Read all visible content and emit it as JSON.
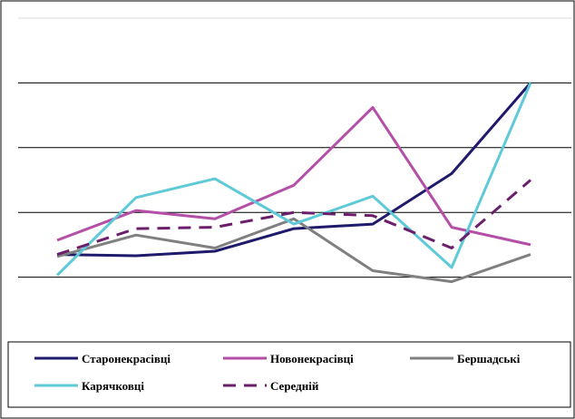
{
  "chart_data": {
    "type": "line",
    "title": "",
    "xlabel": "",
    "ylabel": "",
    "x": [
      1,
      2,
      3,
      4,
      5,
      6,
      7
    ],
    "ylim": [
      0,
      5
    ],
    "y_gridlines": [
      1,
      2,
      3,
      4,
      5
    ],
    "grid": true,
    "legend_position": "bottom",
    "series": [
      {
        "name": "Старонекрасівці",
        "color": "#1f1a6b",
        "dash": "solid",
        "values": [
          1.35,
          1.33,
          1.4,
          1.75,
          1.82,
          2.6,
          4.0
        ]
      },
      {
        "name": "Новонекрасівці",
        "color": "#b44fa8",
        "dash": "solid",
        "values": [
          1.57,
          2.03,
          1.9,
          2.42,
          3.62,
          1.77,
          1.5
        ]
      },
      {
        "name": "Бершадські",
        "color": "#808080",
        "dash": "solid",
        "values": [
          1.32,
          1.65,
          1.45,
          1.9,
          1.1,
          0.93,
          1.35
        ]
      },
      {
        "name": "Карячковці",
        "color": "#5ecad8",
        "dash": "solid",
        "values": [
          1.03,
          2.23,
          2.52,
          1.82,
          2.25,
          1.15,
          4.0
        ]
      },
      {
        "name": "Середній",
        "color": "#6b1f6b",
        "dash": "dashed",
        "values": [
          1.35,
          1.75,
          1.77,
          2.0,
          1.95,
          1.45,
          2.5
        ]
      }
    ]
  }
}
